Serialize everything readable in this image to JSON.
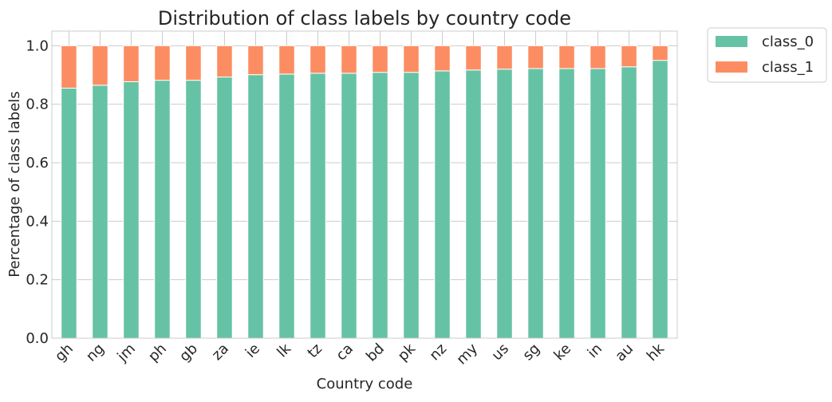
{
  "chart_data": {
    "type": "bar",
    "stacked": true,
    "title": "Distribution of class labels by country code",
    "xlabel": "Country code",
    "ylabel": "Percentage of class labels",
    "categories": [
      "gh",
      "ng",
      "jm",
      "ph",
      "gb",
      "za",
      "ie",
      "lk",
      "tz",
      "ca",
      "bd",
      "pk",
      "nz",
      "my",
      "us",
      "sg",
      "ke",
      "in",
      "au",
      "hk"
    ],
    "series": [
      {
        "name": "class_0",
        "color": "#66c2a5",
        "values": [
          0.855,
          0.865,
          0.877,
          0.882,
          0.882,
          0.893,
          0.901,
          0.903,
          0.906,
          0.906,
          0.909,
          0.909,
          0.914,
          0.917,
          0.92,
          0.922,
          0.922,
          0.922,
          0.928,
          0.95
        ]
      },
      {
        "name": "class_1",
        "color": "#fc8d62",
        "values": [
          0.145,
          0.135,
          0.123,
          0.118,
          0.118,
          0.107,
          0.099,
          0.097,
          0.094,
          0.094,
          0.091,
          0.091,
          0.086,
          0.083,
          0.08,
          0.078,
          0.078,
          0.078,
          0.072,
          0.05
        ]
      }
    ],
    "ylim": [
      0,
      1.05
    ],
    "yticks": [
      0.0,
      0.2,
      0.4,
      0.6,
      0.8,
      1.0
    ],
    "ytick_labels": [
      "0.0",
      "0.2",
      "0.4",
      "0.6",
      "0.8",
      "1.0"
    ],
    "grid": true,
    "legend_position": "outside-top-right"
  }
}
